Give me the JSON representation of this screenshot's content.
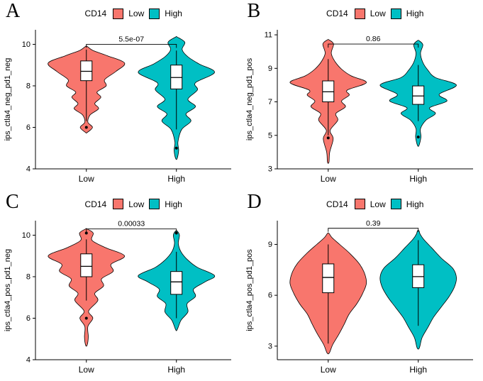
{
  "page": {
    "background": "#ffffff"
  },
  "colors": {
    "low": "#F8766D",
    "high": "#00BFC4",
    "axis": "#000000",
    "box_fill": "#ffffff"
  },
  "chart_data": {
    "type": "violin",
    "layout": "2x2 panels, each violin+boxplot comparing Low vs High CD14 groups, classic theme, no gridlines",
    "panels": [
      {
        "letter": "A",
        "legend": {
          "title": "CD14",
          "items": [
            {
              "label": "Low",
              "color": "#F8766D"
            },
            {
              "label": "High",
              "color": "#00BFC4"
            }
          ]
        },
        "ylabel": "ips_ctla4_neg_pd1_neg",
        "ylim": [
          4,
          10.7
        ],
        "yticks": [
          4,
          6,
          8,
          10
        ],
        "xcats": [
          "Low",
          "High"
        ],
        "pvalue": {
          "label": "5.5e-07",
          "y": 10.0
        },
        "violins": [
          {
            "cat": "Low",
            "color": "#F8766D",
            "density": [
              [
                5.75,
                0.02
              ],
              [
                6.0,
                0.16
              ],
              [
                6.25,
                0.04
              ],
              [
                6.6,
                0.1
              ],
              [
                6.9,
                0.32
              ],
              [
                7.15,
                0.22
              ],
              [
                7.45,
                0.38
              ],
              [
                7.7,
                0.28
              ],
              [
                8.0,
                0.52
              ],
              [
                8.3,
                0.48
              ],
              [
                8.7,
                0.78
              ],
              [
                9.1,
                1.0
              ],
              [
                9.45,
                0.55
              ],
              [
                9.7,
                0.18
              ],
              [
                9.9,
                0.02
              ]
            ],
            "box": {
              "low": 6.3,
              "q1": 8.25,
              "median": 8.7,
              "q3": 9.2,
              "high": 9.75
            },
            "outliers": [
              6.0
            ]
          },
          {
            "cat": "High",
            "color": "#00BFC4",
            "density": [
              [
                4.5,
                0.02
              ],
              [
                4.9,
                0.06
              ],
              [
                5.3,
                0.04
              ],
              [
                5.9,
                0.14
              ],
              [
                6.3,
                0.38
              ],
              [
                6.65,
                0.25
              ],
              [
                7.0,
                0.5
              ],
              [
                7.35,
                0.3
              ],
              [
                7.8,
                0.55
              ],
              [
                8.15,
                0.5
              ],
              [
                8.65,
                1.0
              ],
              [
                9.05,
                0.6
              ],
              [
                9.4,
                0.3
              ],
              [
                9.75,
                0.15
              ],
              [
                10.1,
                0.22
              ],
              [
                10.35,
                0.02
              ]
            ],
            "box": {
              "low": 5.9,
              "q1": 7.85,
              "median": 8.4,
              "q3": 9.0,
              "high": 9.7
            },
            "outliers": [
              5.0
            ]
          }
        ]
      },
      {
        "letter": "B",
        "legend": {
          "title": "CD14",
          "items": [
            {
              "label": "Low",
              "color": "#F8766D"
            },
            {
              "label": "High",
              "color": "#00BFC4"
            }
          ]
        },
        "ylabel": "ips_ctla4_neg_pd1_pos",
        "ylim": [
          3,
          11.3
        ],
        "yticks": [
          3,
          5,
          7,
          9,
          11
        ],
        "xcats": [
          "Low",
          "High"
        ],
        "pvalue": {
          "label": "0.86",
          "y": 10.45
        },
        "violins": [
          {
            "cat": "Low",
            "color": "#F8766D",
            "density": [
              [
                3.4,
                0.02
              ],
              [
                4.0,
                0.04
              ],
              [
                4.8,
                0.13
              ],
              [
                5.3,
                0.05
              ],
              [
                5.9,
                0.25
              ],
              [
                6.3,
                0.2
              ],
              [
                6.7,
                0.45
              ],
              [
                7.05,
                0.35
              ],
              [
                7.4,
                0.55
              ],
              [
                7.7,
                0.5
              ],
              [
                8.15,
                1.0
              ],
              [
                8.55,
                0.6
              ],
              [
                8.95,
                0.35
              ],
              [
                9.4,
                0.18
              ],
              [
                9.9,
                0.08
              ],
              [
                10.45,
                0.14
              ],
              [
                10.7,
                0.02
              ]
            ],
            "box": {
              "low": 5.0,
              "q1": 7.0,
              "median": 7.6,
              "q3": 8.25,
              "high": 9.55
            },
            "outliers": [
              4.85
            ]
          },
          {
            "cat": "High",
            "color": "#00BFC4",
            "density": [
              [
                4.4,
                0.02
              ],
              [
                4.9,
                0.07
              ],
              [
                5.4,
                0.06
              ],
              [
                5.9,
                0.2
              ],
              [
                6.3,
                0.45
              ],
              [
                6.65,
                0.3
              ],
              [
                7.05,
                0.75
              ],
              [
                7.45,
                0.55
              ],
              [
                8.0,
                1.0
              ],
              [
                8.45,
                0.45
              ],
              [
                8.9,
                0.25
              ],
              [
                9.35,
                0.12
              ],
              [
                9.9,
                0.06
              ],
              [
                10.4,
                0.12
              ],
              [
                10.65,
                0.02
              ]
            ],
            "box": {
              "low": 5.85,
              "q1": 6.85,
              "median": 7.35,
              "q3": 7.95,
              "high": 9.2
            },
            "outliers": [
              4.9
            ]
          }
        ]
      },
      {
        "letter": "C",
        "legend": {
          "title": "CD14",
          "items": [
            {
              "label": "Low",
              "color": "#F8766D"
            },
            {
              "label": "High",
              "color": "#00BFC4"
            }
          ]
        },
        "ylabel": "ips_ctla4_pos_pd1_neg",
        "ylim": [
          4,
          10.7
        ],
        "yticks": [
          4,
          6,
          8,
          10
        ],
        "xcats": [
          "Low",
          "High"
        ],
        "pvalue": {
          "label": "0.00033",
          "y": 10.3
        },
        "violins": [
          {
            "cat": "Low",
            "color": "#F8766D",
            "density": [
              [
                4.7,
                0.02
              ],
              [
                5.1,
                0.05
              ],
              [
                5.6,
                0.04
              ],
              [
                6.0,
                0.17
              ],
              [
                6.35,
                0.06
              ],
              [
                6.85,
                0.3
              ],
              [
                7.2,
                0.22
              ],
              [
                7.55,
                0.45
              ],
              [
                7.9,
                0.4
              ],
              [
                8.25,
                0.7
              ],
              [
                8.6,
                0.65
              ],
              [
                9.0,
                1.0
              ],
              [
                9.4,
                0.5
              ],
              [
                9.75,
                0.15
              ],
              [
                10.1,
                0.18
              ],
              [
                10.3,
                0.02
              ]
            ],
            "box": {
              "low": 6.85,
              "q1": 8.0,
              "median": 8.5,
              "q3": 9.1,
              "high": 9.8
            },
            "outliers": [
              6.0,
              10.1
            ]
          },
          {
            "cat": "High",
            "color": "#00BFC4",
            "density": [
              [
                5.45,
                0.02
              ],
              [
                5.9,
                0.12
              ],
              [
                6.3,
                0.3
              ],
              [
                6.7,
                0.28
              ],
              [
                7.05,
                0.5
              ],
              [
                7.4,
                0.45
              ],
              [
                7.75,
                0.75
              ],
              [
                8.05,
                1.0
              ],
              [
                8.45,
                0.55
              ],
              [
                8.8,
                0.3
              ],
              [
                9.2,
                0.12
              ],
              [
                9.6,
                0.05
              ],
              [
                10.0,
                0.08
              ],
              [
                10.2,
                0.02
              ]
            ],
            "box": {
              "low": 6.0,
              "q1": 7.15,
              "median": 7.75,
              "q3": 8.25,
              "high": 9.2
            },
            "outliers": [
              10.1
            ]
          }
        ]
      },
      {
        "letter": "D",
        "legend": {
          "title": "CD14",
          "items": [
            {
              "label": "Low",
              "color": "#F8766D"
            },
            {
              "label": "High",
              "color": "#00BFC4"
            }
          ]
        },
        "ylabel": "ips_ctla4_pos_pd1_pos",
        "ylim": [
          2.2,
          10.4
        ],
        "yticks": [
          3,
          6,
          9
        ],
        "xcats": [
          "Low",
          "High"
        ],
        "pvalue": {
          "label": "0.39",
          "y": 9.95
        },
        "violins": [
          {
            "cat": "Low",
            "color": "#F8766D",
            "density": [
              [
                2.6,
                0.03
              ],
              [
                3.1,
                0.12
              ],
              [
                3.7,
                0.28
              ],
              [
                4.3,
                0.42
              ],
              [
                4.9,
                0.55
              ],
              [
                5.5,
                0.75
              ],
              [
                6.1,
                0.9
              ],
              [
                6.7,
                1.0
              ],
              [
                7.3,
                0.95
              ],
              [
                7.9,
                0.8
              ],
              [
                8.5,
                0.55
              ],
              [
                9.0,
                0.3
              ],
              [
                9.4,
                0.1
              ],
              [
                9.65,
                0.02
              ]
            ],
            "box": {
              "low": 3.15,
              "q1": 6.15,
              "median": 7.05,
              "q3": 7.85,
              "high": 9.0
            },
            "outliers": []
          },
          {
            "cat": "High",
            "color": "#00BFC4",
            "density": [
              [
                2.9,
                0.03
              ],
              [
                3.5,
                0.1
              ],
              [
                4.1,
                0.25
              ],
              [
                4.7,
                0.4
              ],
              [
                5.3,
                0.6
              ],
              [
                5.9,
                0.8
              ],
              [
                6.5,
                0.95
              ],
              [
                7.05,
                1.0
              ],
              [
                7.6,
                0.9
              ],
              [
                8.2,
                0.6
              ],
              [
                8.8,
                0.35
              ],
              [
                9.3,
                0.14
              ],
              [
                9.6,
                0.05
              ],
              [
                9.8,
                0.02
              ]
            ],
            "box": {
              "low": 4.2,
              "q1": 6.45,
              "median": 7.1,
              "q3": 7.8,
              "high": 9.25
            },
            "outliers": []
          }
        ]
      }
    ]
  }
}
